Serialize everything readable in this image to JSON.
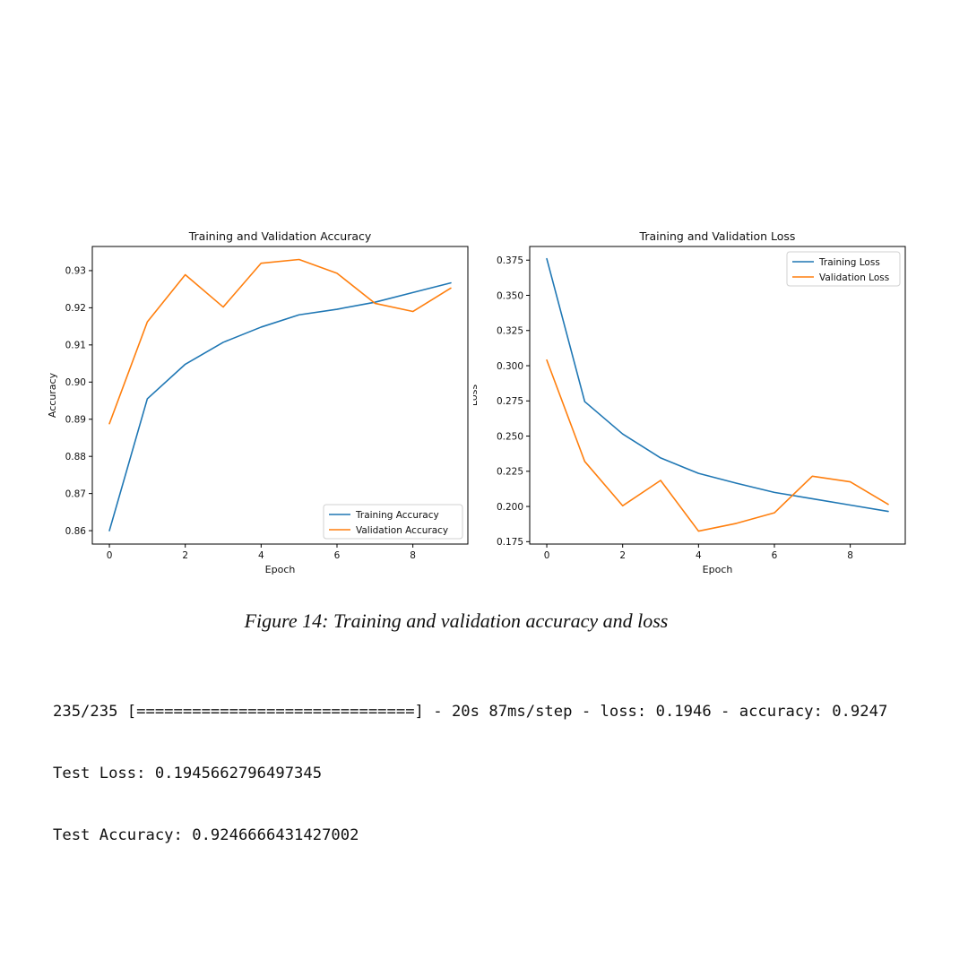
{
  "chart_data": [
    {
      "type": "line",
      "title": "Training and Validation Accuracy",
      "xlabel": "Epoch",
      "ylabel": "Accuracy",
      "x": [
        0,
        1,
        2,
        3,
        4,
        5,
        6,
        7,
        8,
        9
      ],
      "xlim": [
        -0.45,
        9.45
      ],
      "ylim": [
        0.8564,
        0.9365
      ],
      "xticks": [
        0,
        2,
        4,
        6,
        8
      ],
      "xtick_labels": [
        "0",
        "2",
        "4",
        "6",
        "8"
      ],
      "yticks": [
        0.86,
        0.87,
        0.88,
        0.89,
        0.9,
        0.91,
        0.92,
        0.93
      ],
      "ytick_labels": [
        "0.86",
        "0.87",
        "0.88",
        "0.89",
        "0.90",
        "0.91",
        "0.92",
        "0.93"
      ],
      "legend_position": "lower-right",
      "grid": false,
      "series": [
        {
          "name": "Training Accuracy",
          "color": "#1f77b4",
          "values": [
            0.86,
            0.8955,
            0.9048,
            0.9107,
            0.9148,
            0.9181,
            0.9196,
            0.9215,
            0.9241,
            0.9267
          ]
        },
        {
          "name": "Validation Accuracy",
          "color": "#ff7f0e",
          "values": [
            0.8888,
            0.9162,
            0.9289,
            0.9202,
            0.932,
            0.933,
            0.9293,
            0.9212,
            0.919,
            0.9253
          ]
        }
      ]
    },
    {
      "type": "line",
      "title": "Training and Validation Loss",
      "xlabel": "Epoch",
      "ylabel": "Loss",
      "x": [
        0,
        1,
        2,
        3,
        4,
        5,
        6,
        7,
        8,
        9
      ],
      "xlim": [
        -0.45,
        9.45
      ],
      "ylim": [
        0.1733,
        0.3847
      ],
      "xticks": [
        0,
        2,
        4,
        6,
        8
      ],
      "xtick_labels": [
        "0",
        "2",
        "4",
        "6",
        "8"
      ],
      "yticks": [
        0.175,
        0.2,
        0.225,
        0.25,
        0.275,
        0.3,
        0.325,
        0.35,
        0.375
      ],
      "ytick_labels": [
        "0.175",
        "0.200",
        "0.225",
        "0.250",
        "0.275",
        "0.300",
        "0.325",
        "0.350",
        "0.375"
      ],
      "legend_position": "upper-right",
      "grid": false,
      "series": [
        {
          "name": "Training Loss",
          "color": "#1f77b4",
          "values": [
            0.376,
            0.2745,
            0.2515,
            0.2345,
            0.2235,
            0.2165,
            0.21,
            0.2055,
            0.201,
            0.1965
          ]
        },
        {
          "name": "Validation Loss",
          "color": "#ff7f0e",
          "values": [
            0.304,
            0.232,
            0.2005,
            0.2185,
            0.1825,
            0.188,
            0.1955,
            0.2215,
            0.2175,
            0.2015
          ]
        }
      ]
    }
  ],
  "caption": "Figure 14: Training and validation accuracy and loss",
  "console": {
    "progress_line": "235/235 [==============================] - 20s 87ms/step - loss: 0.1946 - accuracy: 0.9247",
    "test_loss_line": "Test Loss: 0.1945662796497345",
    "test_accuracy_line": "Test Accuracy: 0.9246666431427002"
  }
}
